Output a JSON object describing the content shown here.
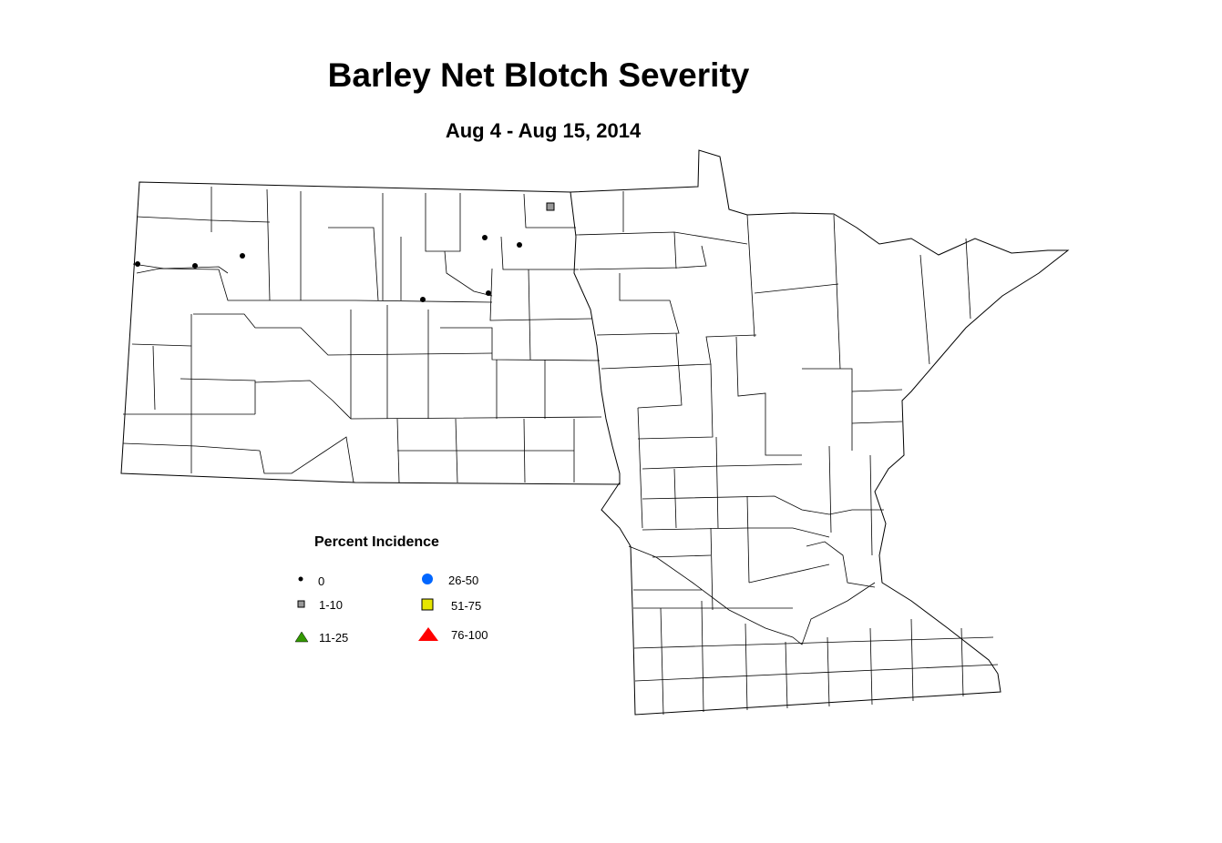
{
  "title": "Barley Net Blotch Severity",
  "subtitle": "Aug 4 - Aug 15, 2014",
  "legend": {
    "title": "Percent Incidence",
    "items": [
      {
        "label": "0",
        "shape": "dot",
        "color": "#000000"
      },
      {
        "label": "1-10",
        "shape": "square",
        "color": "#999999"
      },
      {
        "label": "11-25",
        "shape": "triangle",
        "color": "#339900"
      },
      {
        "label": "26-50",
        "shape": "circle",
        "color": "#0066ff"
      },
      {
        "label": "51-75",
        "shape": "square",
        "color": "#e6e600"
      },
      {
        "label": "76-100",
        "shape": "triangle",
        "color": "#ff0000"
      }
    ]
  },
  "observations_count": {
    "0": 7,
    "1-10": 1
  }
}
